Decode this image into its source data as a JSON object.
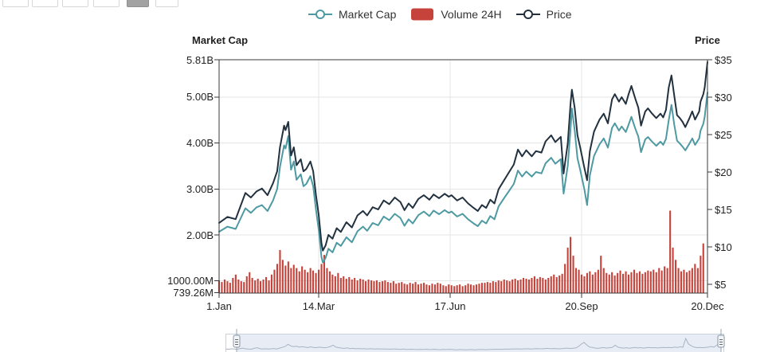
{
  "toolbar": {
    "range_buttons": [
      {
        "id": "range-1",
        "active": false
      },
      {
        "id": "range-2",
        "active": false
      },
      {
        "id": "range-3",
        "active": false
      },
      {
        "id": "range-4",
        "active": false
      },
      {
        "id": "range-5",
        "active": true
      },
      {
        "id": "range-6",
        "active": false
      }
    ]
  },
  "legend": {
    "items": [
      {
        "label": "Market Cap",
        "marker": "line-circle",
        "color": "#4d9aa2"
      },
      {
        "label": "Volume 24H",
        "marker": "rounded-rect",
        "color": "#c5433a"
      },
      {
        "label": "Price",
        "marker": "line-circle",
        "color": "#22313f"
      }
    ]
  },
  "chart_data": {
    "type": "line+bar",
    "title": "",
    "x_axis": {
      "tick_labels": [
        "1.Jan",
        "14.Mar",
        "17.Jun",
        "20.Sep",
        "20.Dec"
      ],
      "tick_days": [
        0,
        72,
        167,
        262,
        353
      ],
      "range_days": [
        0,
        353
      ]
    },
    "left_axis": {
      "title": "Market Cap",
      "tick_labels": [
        "5.81B",
        "5.00B",
        "4.00B",
        "3.00B",
        "2.00B",
        "1000.00M",
        "739.26M"
      ],
      "tick_values_b": [
        5.81,
        5.0,
        4.0,
        3.0,
        2.0,
        1.0,
        0.73926
      ],
      "range_b": [
        0.73926,
        5.81
      ]
    },
    "right_axis": {
      "title": "Price",
      "tick_labels": [
        "$35",
        "$30",
        "$25",
        "$20",
        "$15",
        "$10",
        "$5"
      ],
      "tick_values": [
        35,
        30,
        25,
        20,
        15,
        10,
        5
      ],
      "range": [
        3.8,
        35.2
      ]
    },
    "grid": {
      "h_gridline_values_b": [
        5.0,
        4.0,
        3.0,
        2.0,
        1.0
      ],
      "v_gridline_days": [
        72,
        167,
        262
      ]
    },
    "line_x_days": [
      0,
      6,
      12,
      19,
      23,
      27,
      31,
      35,
      39,
      42,
      44,
      47,
      48,
      50,
      52,
      54,
      56,
      59,
      61,
      63,
      66,
      68,
      70,
      72,
      74,
      75,
      77,
      79,
      82,
      85,
      88,
      92,
      96,
      100,
      104,
      107,
      111,
      115,
      119,
      123,
      127,
      131,
      134,
      137,
      140,
      144,
      148,
      152,
      155,
      159,
      163,
      166,
      168,
      172,
      176,
      180,
      184,
      187,
      190,
      193,
      196,
      199,
      202,
      206,
      209,
      213,
      216,
      219,
      222,
      226,
      229,
      233,
      236,
      240,
      243,
      247,
      249,
      252,
      254,
      255,
      257,
      259,
      261,
      264,
      266,
      268,
      271,
      275,
      278,
      281,
      284,
      286,
      289,
      291,
      294,
      296,
      298,
      301,
      303,
      305,
      308,
      310,
      313,
      316,
      319,
      321,
      323,
      325,
      327,
      329,
      331,
      333,
      335,
      337,
      340,
      342,
      344,
      347,
      348,
      350,
      351,
      353
    ],
    "series": [
      {
        "name": "Price",
        "type": "line",
        "axis": "right",
        "unit": "USD",
        "color": "#22313f",
        "values": [
          13.2,
          14.0,
          13.7,
          17.2,
          16.6,
          17.4,
          17.8,
          16.9,
          18.5,
          20.1,
          23.3,
          26.2,
          25.6,
          26.7,
          22.2,
          23.3,
          20.9,
          21.7,
          20.1,
          20.4,
          21.4,
          20.1,
          16.9,
          14.3,
          10.5,
          9.5,
          10.2,
          11.6,
          11.1,
          12.5,
          12.0,
          13.3,
          12.6,
          14.2,
          14.8,
          14.2,
          15.3,
          15.0,
          16.2,
          15.7,
          16.6,
          16.0,
          14.9,
          15.8,
          15.2,
          16.4,
          16.9,
          16.3,
          17.0,
          16.5,
          17.1,
          16.7,
          16.9,
          16.2,
          16.6,
          15.8,
          15.2,
          14.8,
          15.6,
          15.2,
          16.3,
          15.8,
          17.7,
          18.9,
          19.8,
          21.0,
          23.0,
          22.1,
          22.9,
          22.1,
          22.8,
          22.6,
          24.1,
          24.9,
          24.0,
          24.7,
          19.8,
          23.8,
          29.1,
          31.0,
          28.6,
          24.9,
          23.3,
          20.6,
          18.9,
          22.8,
          25.4,
          27.0,
          27.8,
          26.5,
          29.7,
          30.4,
          29.4,
          30.0,
          29.1,
          30.4,
          31.5,
          29.7,
          28.6,
          26.2,
          28.1,
          28.5,
          27.8,
          27.2,
          27.8,
          27.3,
          28.3,
          31.3,
          32.9,
          30.2,
          27.6,
          27.2,
          26.7,
          26.0,
          27.2,
          28.1,
          27.0,
          28.1,
          29.4,
          30.4,
          31.3,
          34.7
        ]
      },
      {
        "name": "Market Cap",
        "type": "line",
        "axis": "left",
        "unit": "B",
        "color": "#4d9aa2",
        "values": [
          2.07,
          2.18,
          2.13,
          2.58,
          2.48,
          2.6,
          2.65,
          2.52,
          2.75,
          3.0,
          3.48,
          3.95,
          3.88,
          4.15,
          3.42,
          3.6,
          3.2,
          3.32,
          3.06,
          3.11,
          3.28,
          3.06,
          2.55,
          2.12,
          1.52,
          1.4,
          1.5,
          1.7,
          1.62,
          1.83,
          1.76,
          1.95,
          1.84,
          2.08,
          2.18,
          2.09,
          2.26,
          2.21,
          2.4,
          2.32,
          2.46,
          2.37,
          2.2,
          2.34,
          2.25,
          2.43,
          2.51,
          2.41,
          2.53,
          2.45,
          2.54,
          2.48,
          2.51,
          2.4,
          2.46,
          2.34,
          2.25,
          2.19,
          2.31,
          2.25,
          2.41,
          2.34,
          2.62,
          2.8,
          2.93,
          3.11,
          3.4,
          3.27,
          3.38,
          3.27,
          3.37,
          3.34,
          3.56,
          3.68,
          3.55,
          3.65,
          2.9,
          3.5,
          4.3,
          4.75,
          4.28,
          3.67,
          3.42,
          3.0,
          2.65,
          3.3,
          3.72,
          3.97,
          4.1,
          3.9,
          4.33,
          4.43,
          4.27,
          4.36,
          4.24,
          4.4,
          4.57,
          4.3,
          4.14,
          3.8,
          4.08,
          4.13,
          4.03,
          3.94,
          4.03,
          3.96,
          4.09,
          4.5,
          4.83,
          4.4,
          4.05,
          3.99,
          3.92,
          3.84,
          3.99,
          4.1,
          3.96,
          4.1,
          4.27,
          4.42,
          4.57,
          5.1
        ]
      },
      {
        "name": "Volume 24H",
        "type": "bar",
        "axis": "none",
        "unit": "relative_to_max",
        "color": "#c5433a",
        "x_start_day": 0,
        "x_step_days": 2,
        "values": [
          0.15,
          0.13,
          0.16,
          0.14,
          0.12,
          0.18,
          0.22,
          0.16,
          0.14,
          0.13,
          0.2,
          0.25,
          0.18,
          0.15,
          0.17,
          0.14,
          0.16,
          0.19,
          0.15,
          0.22,
          0.28,
          0.35,
          0.52,
          0.4,
          0.33,
          0.38,
          0.3,
          0.34,
          0.3,
          0.26,
          0.32,
          0.28,
          0.25,
          0.3,
          0.27,
          0.24,
          0.28,
          0.35,
          0.46,
          0.3,
          0.26,
          0.22,
          0.2,
          0.24,
          0.18,
          0.2,
          0.17,
          0.19,
          0.16,
          0.18,
          0.15,
          0.17,
          0.16,
          0.14,
          0.16,
          0.15,
          0.14,
          0.15,
          0.13,
          0.14,
          0.15,
          0.13,
          0.12,
          0.14,
          0.11,
          0.12,
          0.13,
          0.11,
          0.1,
          0.12,
          0.11,
          0.13,
          0.1,
          0.11,
          0.12,
          0.1,
          0.09,
          0.11,
          0.1,
          0.12,
          0.11,
          0.09,
          0.08,
          0.1,
          0.09,
          0.08,
          0.09,
          0.1,
          0.08,
          0.09,
          0.11,
          0.1,
          0.09,
          0.1,
          0.11,
          0.12,
          0.12,
          0.13,
          0.12,
          0.14,
          0.13,
          0.15,
          0.14,
          0.16,
          0.15,
          0.14,
          0.16,
          0.17,
          0.15,
          0.16,
          0.18,
          0.17,
          0.16,
          0.18,
          0.2,
          0.17,
          0.19,
          0.18,
          0.16,
          0.18,
          0.2,
          0.22,
          0.19,
          0.21,
          0.23,
          0.35,
          0.55,
          0.68,
          0.45,
          0.3,
          0.28,
          0.22,
          0.2,
          0.24,
          0.26,
          0.22,
          0.25,
          0.28,
          0.45,
          0.3,
          0.24,
          0.22,
          0.25,
          0.21,
          0.24,
          0.27,
          0.23,
          0.26,
          0.22,
          0.25,
          0.28,
          0.24,
          0.26,
          0.23,
          0.25,
          0.27,
          0.26,
          0.28,
          0.25,
          0.3,
          0.27,
          0.32,
          0.3,
          1.0,
          0.55,
          0.4,
          0.3,
          0.26,
          0.28,
          0.25,
          0.27,
          0.3,
          0.35,
          0.3,
          0.45,
          0.6
        ]
      }
    ]
  },
  "navigator": {
    "sparkline_source": "Volume 24H",
    "handle_count": 2
  }
}
